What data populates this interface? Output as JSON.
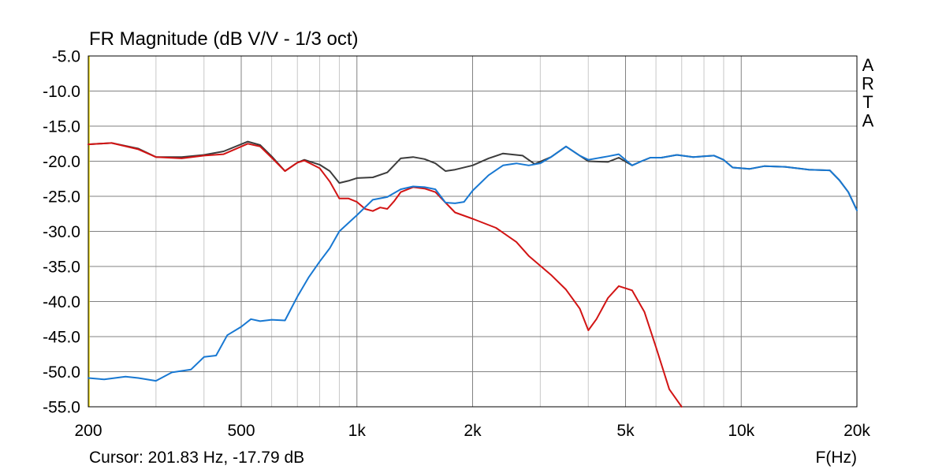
{
  "chart_data": {
    "type": "line",
    "title": "FR Magnitude (dB V/V - 1/3 oct)",
    "watermark": "ARTA",
    "xlabel": "F(Hz)",
    "x_scale": "log",
    "xlim": [
      200,
      20000
    ],
    "ylim": [
      -55,
      -5
    ],
    "x_ticks": [
      {
        "value": 200,
        "label": "200"
      },
      {
        "value": 500,
        "label": "500"
      },
      {
        "value": 1000,
        "label": "1k"
      },
      {
        "value": 2000,
        "label": "2k"
      },
      {
        "value": 5000,
        "label": "5k"
      },
      {
        "value": 10000,
        "label": "10k"
      },
      {
        "value": 20000,
        "label": "20k"
      }
    ],
    "y_ticks": [
      {
        "value": -5,
        "label": "-5.0"
      },
      {
        "value": -10,
        "label": "-10.0"
      },
      {
        "value": -15,
        "label": "-15.0"
      },
      {
        "value": -20,
        "label": "-20.0"
      },
      {
        "value": -25,
        "label": "-25.0"
      },
      {
        "value": -30,
        "label": "-30.0"
      },
      {
        "value": -35,
        "label": "-35.0"
      },
      {
        "value": -40,
        "label": "-40.0"
      },
      {
        "value": -45,
        "label": "-45.0"
      },
      {
        "value": -50,
        "label": "-50.0"
      },
      {
        "value": -55,
        "label": "-55.0"
      }
    ],
    "grid": true,
    "cursor_text": "Cursor: 201.83 Hz, -17.79 dB",
    "series": [
      {
        "color": "#3c3c3c",
        "points": [
          [
            200,
            -17.6
          ],
          [
            230,
            -17.4
          ],
          [
            270,
            -18.2
          ],
          [
            300,
            -19.4
          ],
          [
            350,
            -19.4
          ],
          [
            400,
            -19.1
          ],
          [
            450,
            -18.6
          ],
          [
            520,
            -17.2
          ],
          [
            560,
            -17.7
          ],
          [
            600,
            -19.3
          ],
          [
            650,
            -21.4
          ],
          [
            700,
            -20.2
          ],
          [
            730,
            -19.8
          ],
          [
            800,
            -20.5
          ],
          [
            850,
            -21.4
          ],
          [
            900,
            -23.1
          ],
          [
            950,
            -22.8
          ],
          [
            1000,
            -22.4
          ],
          [
            1100,
            -22.3
          ],
          [
            1200,
            -21.6
          ],
          [
            1300,
            -19.6
          ],
          [
            1400,
            -19.4
          ],
          [
            1500,
            -19.7
          ],
          [
            1600,
            -20.3
          ],
          [
            1700,
            -21.4
          ],
          [
            1800,
            -21.2
          ],
          [
            2000,
            -20.6
          ],
          [
            2200,
            -19.6
          ],
          [
            2400,
            -18.9
          ],
          [
            2700,
            -19.2
          ],
          [
            2900,
            -20.4
          ],
          [
            3200,
            -19.4
          ],
          [
            3500,
            -17.9
          ],
          [
            3800,
            -19.2
          ],
          [
            4000,
            -20.0
          ],
          [
            4500,
            -20.1
          ],
          [
            4800,
            -19.5
          ],
          [
            5200,
            -20.6
          ],
          [
            5500,
            -20.0
          ],
          [
            5800,
            -19.5
          ],
          [
            6200,
            -19.5
          ],
          [
            6800,
            -19.1
          ],
          [
            7500,
            -19.4
          ],
          [
            8500,
            -19.2
          ],
          [
            9000,
            -19.8
          ],
          [
            9500,
            -20.9
          ],
          [
            10500,
            -21.1
          ],
          [
            11500,
            -20.7
          ],
          [
            13000,
            -20.8
          ],
          [
            15000,
            -21.2
          ],
          [
            17000,
            -21.3
          ],
          [
            18000,
            -22.7
          ],
          [
            19000,
            -24.4
          ],
          [
            20000,
            -27.0
          ]
        ]
      },
      {
        "color": "#d21414",
        "points": [
          [
            200,
            -17.6
          ],
          [
            230,
            -17.4
          ],
          [
            270,
            -18.3
          ],
          [
            300,
            -19.4
          ],
          [
            350,
            -19.6
          ],
          [
            400,
            -19.2
          ],
          [
            450,
            -19.0
          ],
          [
            520,
            -17.5
          ],
          [
            560,
            -17.9
          ],
          [
            600,
            -19.5
          ],
          [
            650,
            -21.4
          ],
          [
            700,
            -20.2
          ],
          [
            730,
            -19.9
          ],
          [
            800,
            -21.0
          ],
          [
            850,
            -22.9
          ],
          [
            900,
            -25.3
          ],
          [
            950,
            -25.3
          ],
          [
            1000,
            -25.8
          ],
          [
            1050,
            -26.8
          ],
          [
            1100,
            -27.1
          ],
          [
            1150,
            -26.6
          ],
          [
            1200,
            -26.8
          ],
          [
            1250,
            -25.7
          ],
          [
            1300,
            -24.4
          ],
          [
            1400,
            -23.7
          ],
          [
            1500,
            -23.9
          ],
          [
            1600,
            -24.4
          ],
          [
            1700,
            -25.9
          ],
          [
            1800,
            -27.3
          ],
          [
            2000,
            -28.2
          ],
          [
            2300,
            -29.5
          ],
          [
            2600,
            -31.5
          ],
          [
            2800,
            -33.5
          ],
          [
            3200,
            -36.2
          ],
          [
            3500,
            -38.3
          ],
          [
            3800,
            -41.0
          ],
          [
            4000,
            -44.1
          ],
          [
            4200,
            -42.5
          ],
          [
            4500,
            -39.5
          ],
          [
            4800,
            -37.8
          ],
          [
            5200,
            -38.4
          ],
          [
            5600,
            -41.5
          ],
          [
            6000,
            -46.5
          ],
          [
            6500,
            -52.5
          ],
          [
            7000,
            -55.0
          ]
        ]
      },
      {
        "color": "#1878d2",
        "points": [
          [
            200,
            -50.9
          ],
          [
            220,
            -51.1
          ],
          [
            250,
            -50.7
          ],
          [
            270,
            -50.9
          ],
          [
            300,
            -51.3
          ],
          [
            330,
            -50.1
          ],
          [
            370,
            -49.7
          ],
          [
            400,
            -47.9
          ],
          [
            430,
            -47.7
          ],
          [
            460,
            -44.8
          ],
          [
            500,
            -43.6
          ],
          [
            530,
            -42.5
          ],
          [
            560,
            -42.8
          ],
          [
            600,
            -42.6
          ],
          [
            650,
            -42.7
          ],
          [
            700,
            -39.3
          ],
          [
            750,
            -36.5
          ],
          [
            800,
            -34.3
          ],
          [
            850,
            -32.4
          ],
          [
            900,
            -30.0
          ],
          [
            1000,
            -27.7
          ],
          [
            1100,
            -25.5
          ],
          [
            1200,
            -25.1
          ],
          [
            1300,
            -24.0
          ],
          [
            1400,
            -23.6
          ],
          [
            1500,
            -23.7
          ],
          [
            1600,
            -24.0
          ],
          [
            1700,
            -25.9
          ],
          [
            1800,
            -26.0
          ],
          [
            1900,
            -25.8
          ],
          [
            2000,
            -24.2
          ],
          [
            2200,
            -22.0
          ],
          [
            2400,
            -20.6
          ],
          [
            2600,
            -20.3
          ],
          [
            2800,
            -20.6
          ],
          [
            3000,
            -20.3
          ],
          [
            3200,
            -19.4
          ],
          [
            3500,
            -17.9
          ],
          [
            3800,
            -19.2
          ],
          [
            4000,
            -19.8
          ],
          [
            4500,
            -19.3
          ],
          [
            4800,
            -19.0
          ],
          [
            5200,
            -20.6
          ],
          [
            5500,
            -20.0
          ],
          [
            5800,
            -19.5
          ],
          [
            6200,
            -19.5
          ],
          [
            6800,
            -19.1
          ],
          [
            7500,
            -19.4
          ],
          [
            8500,
            -19.2
          ],
          [
            9000,
            -19.8
          ],
          [
            9500,
            -20.9
          ],
          [
            10500,
            -21.1
          ],
          [
            11500,
            -20.7
          ],
          [
            13000,
            -20.8
          ],
          [
            15000,
            -21.2
          ],
          [
            17000,
            -21.3
          ],
          [
            18000,
            -22.7
          ],
          [
            19000,
            -24.4
          ],
          [
            20000,
            -27.0
          ]
        ]
      }
    ]
  }
}
